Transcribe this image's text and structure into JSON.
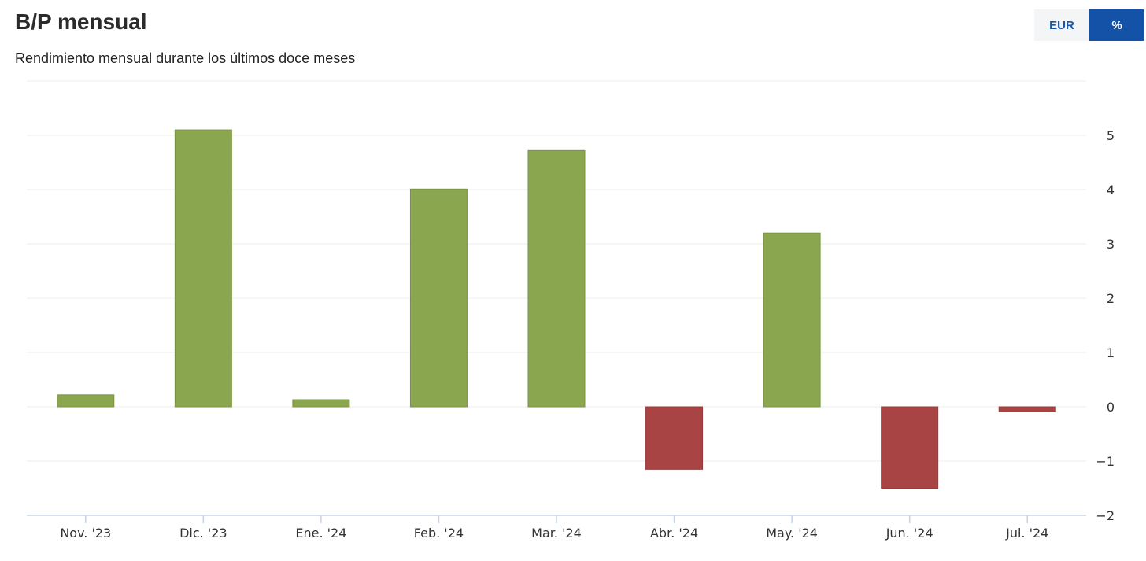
{
  "header": {
    "title": "B/P mensual",
    "subtitle": "Rendimiento mensual durante los últimos doce meses"
  },
  "toggle": {
    "eur_label": "EUR",
    "pct_label": "%",
    "selected": "%"
  },
  "colors": {
    "positive": "#8aa64e",
    "negative": "#a84443",
    "active_button": "#1452a8",
    "grid": "#eeeeee",
    "axis": "#c5d3e6"
  },
  "chart_data": {
    "type": "bar",
    "categories": [
      "Nov. '23",
      "Dic. '23",
      "Ene. '24",
      "Feb. '24",
      "Mar. '24",
      "Abr. '24",
      "May. '24",
      "Jun. '24",
      "Jul. '24"
    ],
    "values": [
      0.22,
      5.1,
      0.13,
      4.01,
      4.72,
      -1.15,
      3.2,
      -1.5,
      -0.09
    ],
    "ylim": [
      -2,
      6
    ],
    "yticks": [
      5,
      4,
      3,
      2,
      1,
      0,
      -1,
      -2
    ],
    "ytick_labels": [
      "5",
      "4",
      "3",
      "2",
      "1",
      "0",
      "−1",
      "−2"
    ],
    "grid": true,
    "yaxis_position": "right"
  }
}
